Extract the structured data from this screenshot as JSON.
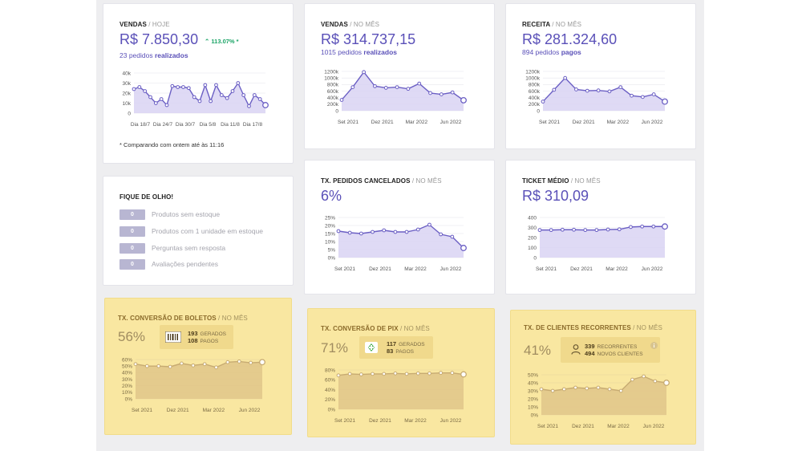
{
  "colors": {
    "accent": "#5a50b8",
    "trend_up": "#1aa466",
    "highlight_card": "#f9e7a1",
    "line_purple": "#6b5fc4",
    "line_gold": "#c7ab72"
  },
  "vendas_hoje": {
    "title": "VENDAS",
    "period": "/ HOJE",
    "value": "R$ 7.850,30",
    "trend": "113.07% *",
    "sub_count": "23 pedidos",
    "sub_label": "realizados",
    "note": "* Comparando com ontem até às 11:16",
    "chart_data": {
      "type": "area",
      "y_ticks": [
        "40k",
        "30k",
        "20k",
        "10k",
        "0"
      ],
      "y_max": 40,
      "x_labels": [
        "Dia 18/7",
        "Dia 24/7",
        "Dia 30/7",
        "Dia 5/8",
        "Dia 11/8",
        "Dia 17/8"
      ],
      "values": [
        24,
        26,
        22,
        16,
        10,
        14,
        8,
        27,
        26,
        26,
        25,
        16,
        12,
        28,
        12,
        28,
        18,
        15,
        22,
        30,
        18,
        7,
        18,
        14,
        8
      ]
    }
  },
  "vendas_mes": {
    "title": "VENDAS",
    "period": "/ NO MÊS",
    "value": "R$ 314.737,15",
    "sub_count": "1015 pedidos",
    "sub_label": "realizados",
    "chart_data": {
      "type": "area",
      "y_ticks": [
        "1200k",
        "1000k",
        "800k",
        "600k",
        "400k",
        "200k",
        "0"
      ],
      "y_max": 1200,
      "x_labels": [
        "Set 2021",
        "Dez 2021",
        "Mar 2022",
        "Jun 2022"
      ],
      "values": [
        330,
        720,
        1180,
        750,
        700,
        720,
        670,
        830,
        540,
        500,
        560,
        320
      ]
    }
  },
  "receita_mes": {
    "title": "RECEITA",
    "period": "/ NO MÊS",
    "value": "R$ 281.324,60",
    "sub_count": "894 pedidos",
    "sub_label": "pagos",
    "chart_data": {
      "type": "area",
      "y_ticks": [
        "1200k",
        "1000k",
        "800k",
        "600k",
        "400k",
        "200k",
        "0"
      ],
      "y_max": 1200,
      "x_labels": [
        "Set 2021",
        "Dez 2021",
        "Mar 2022",
        "Jun 2022"
      ],
      "values": [
        280,
        640,
        1000,
        650,
        610,
        620,
        590,
        720,
        460,
        420,
        500,
        280
      ]
    }
  },
  "watch": {
    "title": "FIQUE DE OLHO!",
    "items": [
      {
        "count": "0",
        "label": "Produtos sem estoque"
      },
      {
        "count": "0",
        "label": "Produtos com 1 unidade em estoque"
      },
      {
        "count": "0",
        "label": "Perguntas sem resposta"
      },
      {
        "count": "0",
        "label": "Avaliações pendentes"
      }
    ]
  },
  "cancelados": {
    "title": "TX. PEDIDOS CANCELADOS",
    "period": "/ NO MÊS",
    "value": "6%",
    "chart_data": {
      "type": "area",
      "y_ticks": [
        "25%",
        "20%",
        "15%",
        "10%",
        "5%",
        "0%"
      ],
      "y_max": 25,
      "x_labels": [
        "Set 2021",
        "Dez 2021",
        "Mar 2022",
        "Jun 2022"
      ],
      "values": [
        16.5,
        15.5,
        15,
        16,
        17,
        16,
        16,
        17.5,
        20.5,
        14.5,
        13,
        6
      ]
    }
  },
  "ticket": {
    "title": "TICKET MÉDIO",
    "period": "/ NO MÊS",
    "value": "R$ 310,09",
    "chart_data": {
      "type": "area",
      "y_ticks": [
        "400",
        "300",
        "200",
        "100",
        "0"
      ],
      "y_max": 400,
      "x_labels": [
        "Set 2021",
        "Dez 2021",
        "Mar 2022",
        "Jun 2022"
      ],
      "values": [
        275,
        275,
        278,
        278,
        275,
        275,
        280,
        282,
        305,
        310,
        310,
        310
      ]
    }
  },
  "boletos": {
    "title": "TX. CONVERSÃO DE BOLETOS",
    "period": "/ NO MÊS",
    "value": "56%",
    "gen_num": "193",
    "gen_label": "GERADOS",
    "paid_num": "108",
    "paid_label": "PAGOS",
    "chart_data": {
      "type": "area",
      "y_ticks": [
        "60%",
        "50%",
        "40%",
        "30%",
        "20%",
        "10%",
        "0%"
      ],
      "y_max": 60,
      "x_labels": [
        "Set 2021",
        "Dez 2021",
        "Mar 2022",
        "Jun 2022"
      ],
      "values": [
        53,
        50,
        50,
        49,
        54,
        51,
        53,
        48,
        56,
        57,
        55,
        56
      ]
    }
  },
  "pix": {
    "title": "TX. CONVERSÃO DE PIX",
    "period": "/ NO MÊS",
    "value": "71%",
    "gen_num": "117",
    "gen_label": "GERADOS",
    "paid_num": "83",
    "paid_label": "PAGOS",
    "chart_data": {
      "type": "area",
      "y_ticks": [
        "80%",
        "60%",
        "40%",
        "20%",
        "0%"
      ],
      "y_max": 80,
      "x_labels": [
        "Set 2021",
        "Dez 2021",
        "Mar 2022",
        "Jun 2022"
      ],
      "values": [
        69,
        72,
        71,
        72,
        72,
        73,
        72,
        73,
        73,
        74,
        74,
        71
      ]
    }
  },
  "recorrentes": {
    "title": "TX. DE CLIENTES RECORRENTES",
    "period": "/ NO MÊS",
    "value": "41%",
    "gen_num": "339",
    "gen_label": "RECORRENTES",
    "paid_num": "494",
    "paid_label": "NOVOS CLIENTES",
    "chart_data": {
      "type": "area",
      "y_ticks": [
        "50%",
        "40%",
        "30%",
        "20%",
        "10%",
        "0%"
      ],
      "y_max": 50,
      "x_labels": [
        "Set 2021",
        "Dez 2021",
        "Mar 2022",
        "Jun 2022"
      ],
      "values": [
        32,
        30,
        32,
        34,
        33,
        34,
        32,
        30,
        44,
        48,
        42,
        40
      ]
    }
  }
}
